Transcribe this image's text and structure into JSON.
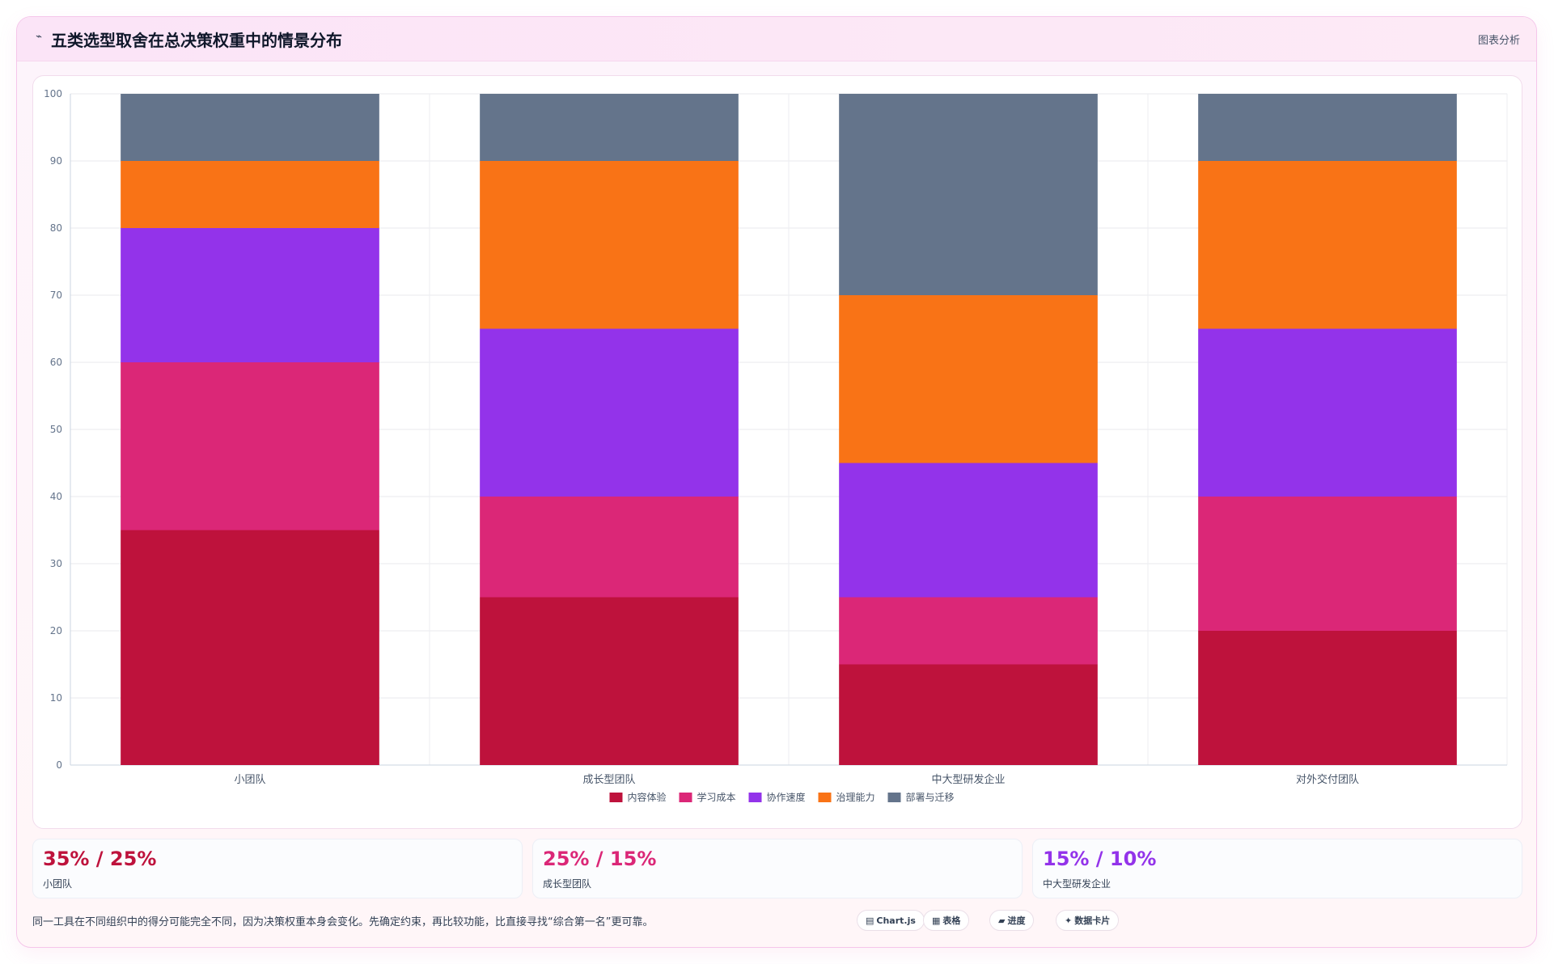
{
  "header": {
    "icon": "chart-line-icon",
    "title": "五类选型取舍在总决策权重中的情景分布",
    "tag": "图表分析"
  },
  "chart_data": {
    "type": "bar",
    "stacked": true,
    "categories": [
      "小团队",
      "成长型团队",
      "中大型研发企业",
      "对外交付团队"
    ],
    "series": [
      {
        "name": "内容体验",
        "color": "#be123c",
        "values": [
          35,
          25,
          15,
          20
        ]
      },
      {
        "name": "学习成本",
        "color": "#db2777",
        "values": [
          25,
          15,
          10,
          20
        ]
      },
      {
        "name": "协作速度",
        "color": "#9333ea",
        "values": [
          20,
          25,
          20,
          25
        ]
      },
      {
        "name": "治理能力",
        "color": "#f97316",
        "values": [
          10,
          25,
          25,
          25
        ]
      },
      {
        "name": "部署与迁移",
        "color": "#64748b",
        "values": [
          10,
          10,
          30,
          10
        ]
      }
    ],
    "ylim": [
      0,
      100
    ],
    "yticks": [
      "0",
      "10",
      "20",
      "30",
      "40",
      "50",
      "60",
      "70",
      "80",
      "90",
      "100"
    ],
    "grid": true,
    "legend": "bottom"
  },
  "stats": [
    {
      "value": "35% / 25%",
      "label": "小团队",
      "color": "#be123c"
    },
    {
      "value": "25% / 15%",
      "label": "成长型团队",
      "color": "#db2777"
    },
    {
      "value": "15% / 10%",
      "label": "中大型研发企业",
      "color": "#9333ea"
    }
  ],
  "footer": {
    "note": "同一工具在不同组织中的得分可能完全不同，因为决策权重本身会变化。先确定约束，再比较功能，比直接寻找“综合第一名”更可靠。",
    "chips": [
      {
        "icon": "chart-icon",
        "glyph": "▤",
        "label": "Chart.js"
      },
      {
        "icon": "table-icon",
        "glyph": "▦",
        "label": "表格"
      },
      {
        "icon": "progress-icon",
        "glyph": "▰",
        "label": "进度"
      },
      {
        "icon": "sparkle-icon",
        "glyph": "✦",
        "label": "数据卡片"
      }
    ]
  }
}
